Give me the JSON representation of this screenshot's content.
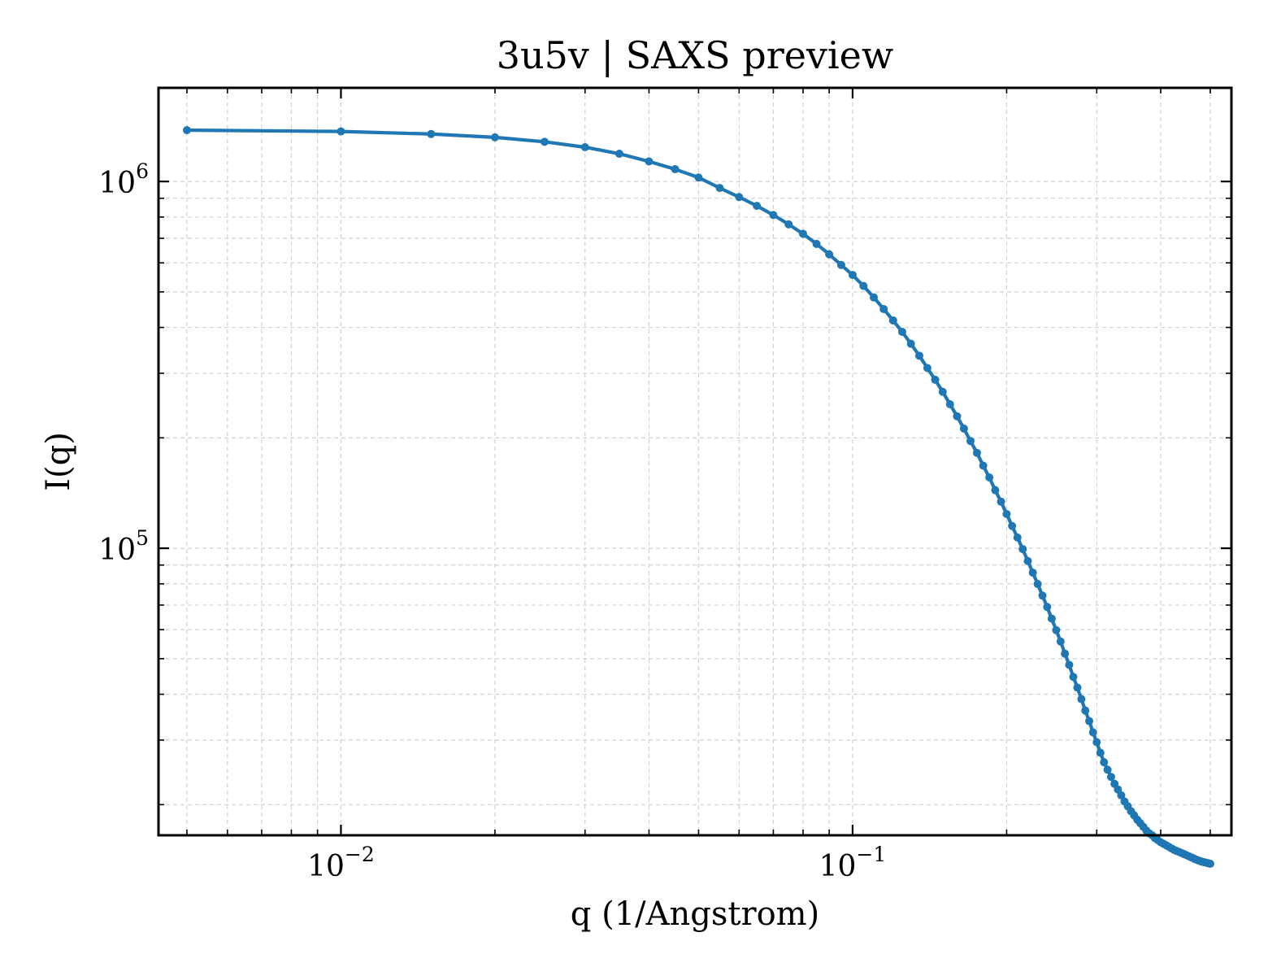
{
  "chart_data": {
    "type": "line",
    "title": "3u5v | SAXS preview",
    "xlabel": "q (1/Angstrom)",
    "ylabel": "I(q)",
    "xscale": "log",
    "yscale": "log",
    "xlim": [
      0.0044,
      0.55
    ],
    "ylim": [
      16500,
      1800000
    ],
    "grid": true,
    "grid_style": "dashed, major and minor",
    "series_color": "#1f77b4",
    "x_ticks": [
      {
        "base": "10",
        "exp": "−2",
        "value": 0.01
      },
      {
        "base": "10",
        "exp": "−1",
        "value": 0.1
      }
    ],
    "y_ticks": [
      {
        "base": "10",
        "exp": "5",
        "value": 100000
      },
      {
        "base": "10",
        "exp": "6",
        "value": 1000000
      }
    ],
    "series": [
      {
        "x": [
          0.005,
          0.01,
          0.015,
          0.02,
          0.025,
          0.03,
          0.035,
          0.04,
          0.045,
          0.05,
          0.055,
          0.06,
          0.065,
          0.07,
          0.075,
          0.08,
          0.085,
          0.09,
          0.095,
          0.1,
          0.105,
          0.11,
          0.115,
          0.12,
          0.125,
          0.13,
          0.135,
          0.14,
          0.145,
          0.15,
          0.155,
          0.16,
          0.165,
          0.17,
          0.175,
          0.18,
          0.185,
          0.19,
          0.195,
          0.2,
          0.205,
          0.21,
          0.215,
          0.22,
          0.225,
          0.23,
          0.235,
          0.24,
          0.245,
          0.25,
          0.255,
          0.26,
          0.265,
          0.27,
          0.275,
          0.28,
          0.285,
          0.29,
          0.295,
          0.3,
          0.305,
          0.31,
          0.315,
          0.32,
          0.325,
          0.33,
          0.335,
          0.34,
          0.345,
          0.35,
          0.355,
          0.36,
          0.365,
          0.37,
          0.375,
          0.38,
          0.385,
          0.39,
          0.395,
          0.4,
          0.405,
          0.41,
          0.415,
          0.42,
          0.425,
          0.43,
          0.435,
          0.44,
          0.445,
          0.45,
          0.455,
          0.46,
          0.465,
          0.47,
          0.475,
          0.48,
          0.485,
          0.49,
          0.495,
          0.5
        ],
        "y": [
          1380000,
          1369000,
          1347000,
          1319000,
          1283000,
          1240000,
          1190000,
          1134000,
          1080000,
          1025000,
          960000,
          907000,
          858000,
          810000,
          764000,
          720000,
          676000,
          633000,
          592000,
          556000,
          519000,
          483000,
          449000,
          418000,
          389000,
          361000,
          335000,
          310000,
          288000,
          267000,
          247000,
          229000,
          212000,
          196000,
          182000,
          168000,
          156000,
          144000,
          134000,
          124000,
          115000,
          107000,
          99500,
          92300,
          85800,
          79900,
          74300,
          69200,
          64300,
          59800,
          55700,
          51600,
          48100,
          44600,
          41700,
          38800,
          36100,
          33800,
          31500,
          29600,
          27700,
          26100,
          24900,
          23800,
          22800,
          22000,
          21200,
          20400,
          19800,
          19200,
          18700,
          18200,
          17800,
          17400,
          17000,
          16700,
          16500,
          16200,
          16000,
          15800,
          15650,
          15500,
          15350,
          15200,
          15050,
          14950,
          14850,
          14750,
          14650,
          14550,
          14450,
          14350,
          14250,
          14150,
          14080,
          14000,
          13950,
          13900,
          13850,
          13800
        ]
      }
    ]
  }
}
